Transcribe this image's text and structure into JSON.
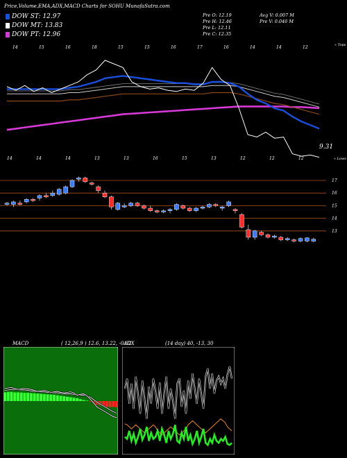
{
  "header": {
    "title": "Price,Volume,EMA,ADX,MACD Charts for SOHU MunafaSutra.com"
  },
  "legend": [
    {
      "label": "DOW ST: 12.97",
      "color": "#1a4fe0"
    },
    {
      "label": "DOW MT: 13.83",
      "color": "#ffffff"
    },
    {
      "label": "DOW PT: 12.96",
      "color": "#d63ad6"
    }
  ],
  "stats": {
    "pre_o": "Pre   O: 12.19",
    "pre_h": "Pre   H: 12.46",
    "pre_l": "Pre   L: 12.11",
    "pre_c": "Pre   C: 12.35",
    "avg_v": "Avg V: 0.007  M",
    "pre_v": "Pre  V: 0.046  M"
  },
  "colors": {
    "ema_short": "#1a4fe0",
    "ema_long": "#d63ad6",
    "up": "#3a7bff",
    "down": "#ff2b2b",
    "grid": "#b0521a",
    "macd_bg": "#0a6e0a",
    "macd_green": "#33ff33",
    "macd_red": "#ff2222",
    "adx_green": "#22ee22",
    "adx_orange": "#f08a1a"
  },
  "chart_data": [
    {
      "type": "line",
      "name": "ema_panel",
      "top_ticks": [
        "14",
        "15",
        "16",
        "18",
        "15",
        "15",
        "16",
        "17",
        "16",
        "14",
        "14",
        "12"
      ],
      "bottom_ticks": [
        "14",
        "14",
        "14",
        "13",
        "13",
        "16",
        "15",
        "13",
        "12",
        "12",
        "12"
      ],
      "top_right_label": "« Tops",
      "bottom_right_label": "« Lows",
      "last_low_label": "9.31",
      "price": [
        15.2,
        14.9,
        15.3,
        14.8,
        15.1,
        14.7,
        15.0,
        15.3,
        15.6,
        16.2,
        16.6,
        17.4,
        17.1,
        16.8,
        15.6,
        15.2,
        15.0,
        15.1,
        14.9,
        14.8,
        15.0,
        14.9,
        15.5,
        16.8,
        15.8,
        15.3,
        13.4,
        11.2,
        11.0,
        11.4,
        10.9,
        11.0,
        9.6,
        9.4,
        9.5,
        9.31
      ],
      "ema_short": [
        15.0,
        15.0,
        15.0,
        15.0,
        15.0,
        15.0,
        15.0,
        15.1,
        15.2,
        15.4,
        15.6,
        15.9,
        16.0,
        16.1,
        16.0,
        15.9,
        15.8,
        15.7,
        15.6,
        15.5,
        15.5,
        15.4,
        15.4,
        15.6,
        15.6,
        15.5,
        15.2,
        14.6,
        14.1,
        13.8,
        13.4,
        13.2,
        12.7,
        12.3,
        12.0,
        11.7
      ],
      "ema_mid": [
        14.6,
        14.6,
        14.6,
        14.6,
        14.6,
        14.6,
        14.6,
        14.7,
        14.7,
        14.8,
        14.9,
        15.0,
        15.1,
        15.2,
        15.2,
        15.2,
        15.2,
        15.2,
        15.2,
        15.2,
        15.2,
        15.2,
        15.2,
        15.3,
        15.3,
        15.3,
        15.2,
        15.0,
        14.8,
        14.6,
        14.4,
        14.3,
        14.1,
        13.9,
        13.7,
        13.5
      ],
      "ema_long": [
        11.6,
        11.7,
        11.8,
        11.9,
        12.0,
        12.1,
        12.2,
        12.3,
        12.4,
        12.5,
        12.6,
        12.7,
        12.8,
        12.9,
        12.95,
        13.0,
        13.05,
        13.1,
        13.15,
        13.2,
        13.25,
        13.3,
        13.35,
        13.4,
        13.45,
        13.5,
        13.55,
        13.55,
        13.55,
        13.55,
        13.55,
        13.55,
        13.5,
        13.5,
        13.45,
        13.4
      ]
    },
    {
      "type": "candlestick",
      "name": "price_panel",
      "y_ticks": [
        "17",
        "16",
        "15",
        "14",
        "13"
      ],
      "candles": [
        {
          "o": 15.1,
          "h": 15.3,
          "l": 15.0,
          "c": 15.2
        },
        {
          "o": 15.1,
          "h": 15.4,
          "l": 14.9,
          "c": 15.3
        },
        {
          "o": 15.2,
          "h": 15.4,
          "l": 15.0,
          "c": 15.1
        },
        {
          "o": 15.3,
          "h": 15.6,
          "l": 15.2,
          "c": 15.5
        },
        {
          "o": 15.5,
          "h": 15.6,
          "l": 15.3,
          "c": 15.4
        },
        {
          "o": 15.6,
          "h": 15.9,
          "l": 15.4,
          "c": 15.8
        },
        {
          "o": 15.8,
          "h": 16.0,
          "l": 15.6,
          "c": 15.7
        },
        {
          "o": 15.8,
          "h": 16.2,
          "l": 15.7,
          "c": 16.0
        },
        {
          "o": 15.9,
          "h": 16.4,
          "l": 15.8,
          "c": 16.3
        },
        {
          "o": 16.0,
          "h": 16.6,
          "l": 15.9,
          "c": 16.5
        },
        {
          "o": 16.5,
          "h": 17.1,
          "l": 16.4,
          "c": 17.0
        },
        {
          "o": 17.1,
          "h": 17.3,
          "l": 16.9,
          "c": 17.2
        },
        {
          "o": 17.2,
          "h": 17.3,
          "l": 16.8,
          "c": 16.9
        },
        {
          "o": 16.8,
          "h": 16.9,
          "l": 16.6,
          "c": 16.7
        },
        {
          "o": 16.5,
          "h": 16.6,
          "l": 16.0,
          "c": 16.2
        },
        {
          "o": 16.0,
          "h": 16.2,
          "l": 15.6,
          "c": 15.7
        },
        {
          "o": 15.7,
          "h": 15.8,
          "l": 14.7,
          "c": 14.9
        },
        {
          "o": 14.7,
          "h": 15.3,
          "l": 14.6,
          "c": 15.2
        },
        {
          "o": 14.9,
          "h": 15.2,
          "l": 14.8,
          "c": 15.0
        },
        {
          "o": 15.0,
          "h": 15.3,
          "l": 14.9,
          "c": 15.2
        },
        {
          "o": 15.2,
          "h": 15.3,
          "l": 14.9,
          "c": 15.0
        },
        {
          "o": 15.0,
          "h": 15.1,
          "l": 14.7,
          "c": 14.8
        },
        {
          "o": 14.8,
          "h": 15.0,
          "l": 14.5,
          "c": 14.6
        },
        {
          "o": 14.6,
          "h": 14.7,
          "l": 14.4,
          "c": 14.5
        },
        {
          "o": 14.5,
          "h": 14.7,
          "l": 14.4,
          "c": 14.6
        },
        {
          "o": 14.6,
          "h": 14.8,
          "l": 14.4,
          "c": 14.7
        },
        {
          "o": 14.7,
          "h": 15.2,
          "l": 14.6,
          "c": 15.1
        },
        {
          "o": 15.0,
          "h": 15.1,
          "l": 14.7,
          "c": 14.8
        },
        {
          "o": 14.8,
          "h": 14.9,
          "l": 14.5,
          "c": 14.6
        },
        {
          "o": 14.6,
          "h": 14.9,
          "l": 14.5,
          "c": 14.8
        },
        {
          "o": 14.8,
          "h": 15.0,
          "l": 14.7,
          "c": 14.9
        },
        {
          "o": 14.9,
          "h": 15.2,
          "l": 14.8,
          "c": 15.1
        },
        {
          "o": 15.1,
          "h": 15.2,
          "l": 14.9,
          "c": 15.0
        },
        {
          "o": 14.8,
          "h": 15.0,
          "l": 14.6,
          "c": 14.9
        },
        {
          "o": 15.0,
          "h": 15.4,
          "l": 14.9,
          "c": 15.3
        },
        {
          "o": 14.7,
          "h": 14.8,
          "l": 14.4,
          "c": 14.6
        },
        {
          "o": 14.3,
          "h": 14.4,
          "l": 13.2,
          "c": 13.3
        },
        {
          "o": 13.1,
          "h": 13.5,
          "l": 12.3,
          "c": 12.5
        },
        {
          "o": 12.5,
          "h": 13.1,
          "l": 12.3,
          "c": 13.0
        },
        {
          "o": 12.9,
          "h": 13.0,
          "l": 12.6,
          "c": 12.7
        },
        {
          "o": 12.7,
          "h": 12.8,
          "l": 12.4,
          "c": 12.5
        },
        {
          "o": 12.5,
          "h": 12.7,
          "l": 12.4,
          "c": 12.6
        },
        {
          "o": 12.5,
          "h": 12.6,
          "l": 12.2,
          "c": 12.3
        },
        {
          "o": 12.3,
          "h": 12.5,
          "l": 12.2,
          "c": 12.4
        },
        {
          "o": 12.3,
          "h": 12.4,
          "l": 12.1,
          "c": 12.2
        },
        {
          "o": 12.2,
          "h": 12.5,
          "l": 12.1,
          "c": 12.4
        },
        {
          "o": 12.2,
          "h": 12.5,
          "l": 12.1,
          "c": 12.45
        },
        {
          "o": 12.19,
          "h": 12.46,
          "l": 12.11,
          "c": 12.35
        }
      ]
    },
    {
      "type": "bar",
      "name": "macd_panel",
      "label": "MACD",
      "params": "( 12,26,9 ) 12.6,  13.22,  -0.62",
      "histogram": [
        0.9,
        0.95,
        0.95,
        0.9,
        0.9,
        0.88,
        0.85,
        0.85,
        0.82,
        0.8,
        0.78,
        0.75,
        0.72,
        0.7,
        0.68,
        0.65,
        0.6,
        0.55,
        0.5,
        0.45,
        0.4,
        0.35,
        0.3,
        0.2,
        0.12,
        0.05,
        -0.05,
        -0.2,
        -0.35,
        -0.45,
        -0.55,
        -0.6,
        -0.62,
        -0.6,
        -0.62
      ],
      "macd": [
        1.3,
        1.35,
        1.4,
        1.3,
        1.2,
        1.25,
        1.3,
        1.25,
        1.2,
        1.1,
        1.0,
        1.05,
        1.1,
        1.0,
        0.9,
        0.95,
        1.0,
        0.9,
        0.85,
        0.9,
        0.95,
        0.85,
        0.6,
        0.7,
        0.75,
        0.55,
        0.2,
        -0.2,
        -0.6,
        -0.8,
        -1.0,
        -1.2,
        -1.4,
        -1.6,
        -1.7
      ],
      "signal": [
        1.1,
        1.15,
        1.2,
        1.2,
        1.15,
        1.15,
        1.15,
        1.1,
        1.05,
        1.0,
        0.95,
        0.95,
        0.95,
        0.9,
        0.85,
        0.85,
        0.85,
        0.8,
        0.75,
        0.75,
        0.75,
        0.7,
        0.6,
        0.6,
        0.6,
        0.55,
        0.4,
        0.15,
        -0.1,
        -0.3,
        -0.5,
        -0.7,
        -0.9,
        -1.1,
        -1.25
      ]
    },
    {
      "type": "line",
      "name": "adx_panel",
      "label": "ADX",
      "params": "(14  day) 40,  -13,  30",
      "plus_di_line": [
        60,
        70,
        45,
        65,
        40,
        72,
        55,
        35,
        68,
        50,
        30,
        62,
        45,
        70,
        58,
        40,
        66,
        35,
        55,
        72,
        40,
        60,
        48,
        30,
        65,
        70,
        42,
        58,
        35,
        68,
        50,
        75,
        60,
        45,
        70,
        55,
        40,
        72,
        80,
        60,
        75,
        55,
        68,
        72,
        65,
        70,
        60,
        74,
        82,
        70
      ],
      "minus_di": [
        12,
        10,
        18,
        8,
        15,
        6,
        12,
        20,
        9,
        14,
        22,
        8,
        16,
        10,
        12,
        18,
        8,
        20,
        14,
        6,
        18,
        10,
        15,
        24,
        8,
        6,
        16,
        10,
        22,
        8,
        14,
        5,
        10,
        18,
        6,
        12,
        20,
        6,
        4,
        10,
        6,
        14,
        8,
        6,
        10,
        8,
        12,
        5,
        4,
        6
      ],
      "adx": [
        25,
        24,
        22,
        20,
        22,
        24,
        22,
        20,
        18,
        16,
        18,
        20,
        22,
        24,
        22,
        18,
        16,
        14,
        16,
        18,
        20,
        22,
        20,
        18,
        16,
        14,
        16,
        18,
        20,
        24,
        26,
        28,
        26,
        24,
        22,
        20,
        18,
        16,
        18,
        20,
        22,
        24,
        26,
        28,
        30,
        28,
        26,
        22,
        20,
        18
      ]
    }
  ]
}
